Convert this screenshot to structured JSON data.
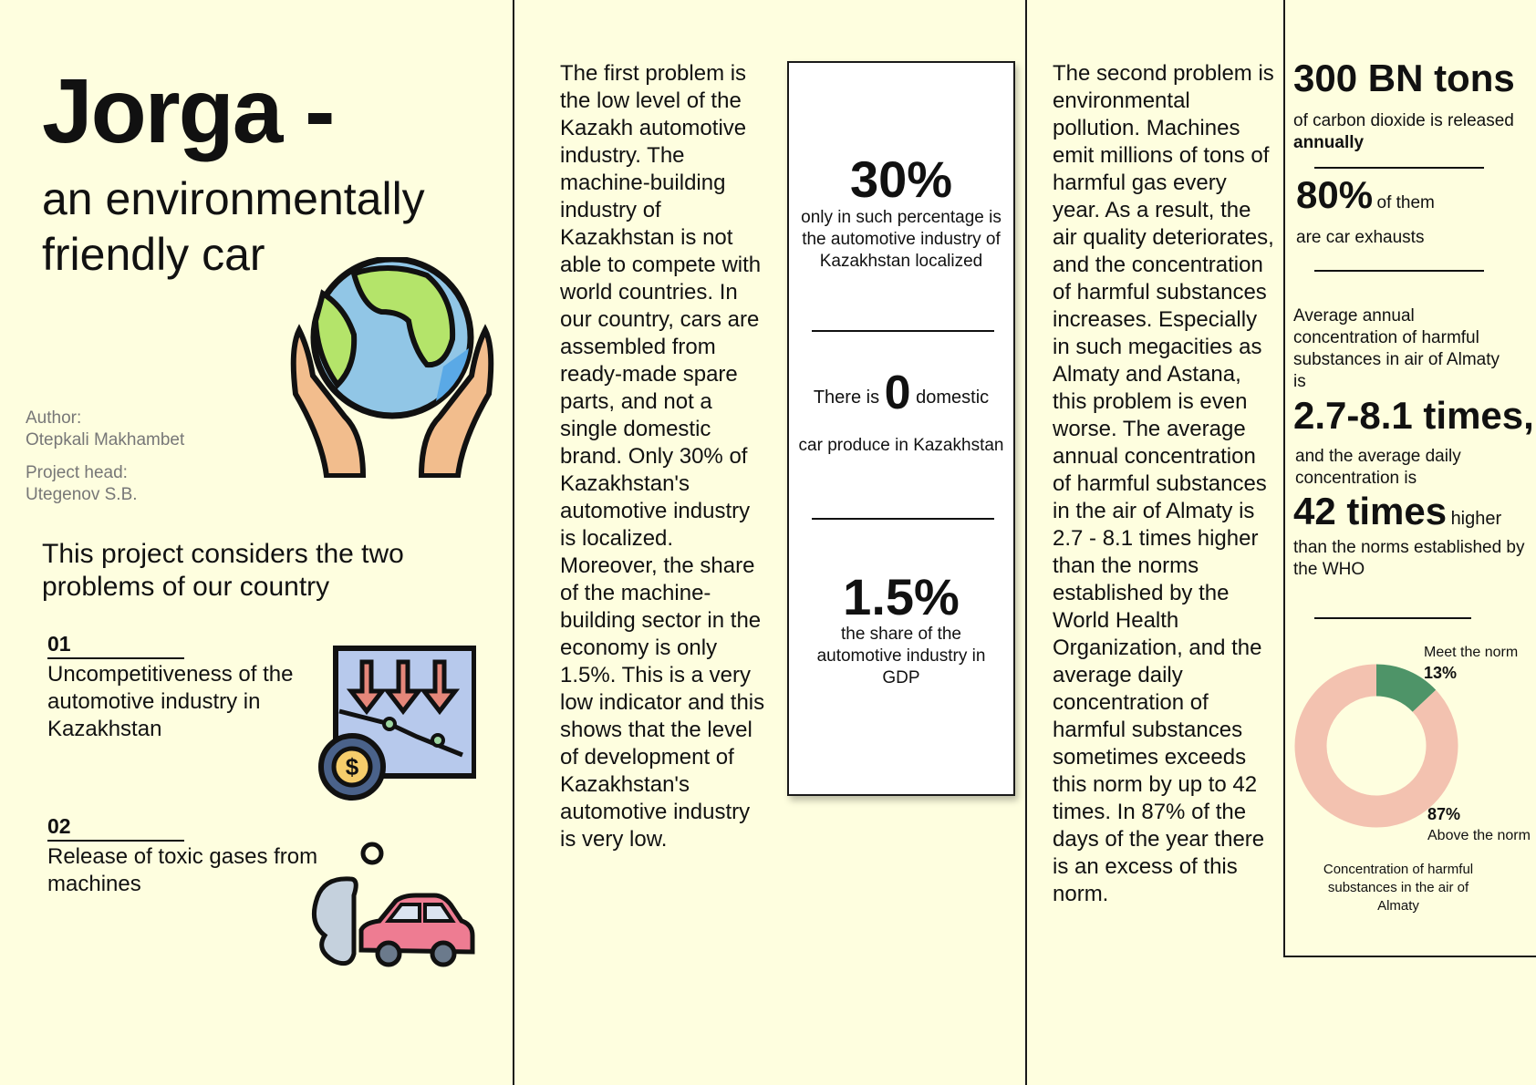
{
  "header": {
    "title": "Jorga -",
    "subtitle": "an environmentally friendly car"
  },
  "credits": {
    "author_label": "Author:",
    "author_name": "Otepkali Makhambet",
    "head_label": "Project head:",
    "head_name": "Utegenov S.B."
  },
  "intro": "This project considers the two problems of our country",
  "problems": [
    {
      "number": "01",
      "text": "Uncompetitiveness of the automotive industry in Kazakhstan",
      "icon": "declining-chart-icon"
    },
    {
      "number": "02",
      "text": "Release of toxic gases from machines",
      "icon": "car-exhaust-icon"
    }
  ],
  "globe_icon": "globe-in-hands-icon",
  "column2": {
    "text": "The first problem is the low level of the Kazakh automotive industry. The machine-building industry of Kazakhstan is not able to compete with world countries. In our country, cars are assembled from ready-made spare parts, and not a single domestic brand. Only 30% of Kazakhstan's automotive industry is localized. Moreover, the share of the machine-building sector in the economy is only 1.5%. This is a very low indicator and this shows that the level of development of Kazakhstan's automotive industry is very low."
  },
  "stats_box": {
    "stat1_value": "30%",
    "stat1_caption": "only in such percentage is the automotive industry of Kazakhstan localized",
    "stat2_prefix": "There is",
    "stat2_value": "0",
    "stat2_suffix": "domestic",
    "stat2_caption": "car produce in Kazakhstan",
    "stat3_value": "1.5%",
    "stat3_caption": "the share of the automotive industry in GDP"
  },
  "column3": {
    "text": "The second problem is environmental pollution. Machines emit millions of tons of harmful gas every year. As a result, the air quality deteriorates, and the concentration of harmful substances increases. Especially in such megacities as Almaty and Astana, this problem is even worse. The average annual concentration of harmful substances in the air of Almaty is 2.7 - 8.1 times higher than the norms established by the World Health Organization, and the average daily concentration of harmful substances sometimes exceeds this norm by up to 42 times. In 87% of the days of the year there is an excess of this norm."
  },
  "column4": {
    "co2_value": "300 BN tons",
    "co2_text": "of carbon dioxide is released",
    "co2_bold": "annually",
    "cars_value": "80%",
    "cars_suffix": "of them",
    "cars_text": "are car exhausts",
    "annual_text": "Average annual concentration of harmful substances in air of Almaty is",
    "annual_value": "2.7-8.1 times,",
    "daily_text": "and the average daily concentration is",
    "daily_value": "42 times",
    "daily_suffix": "higher",
    "daily_tail": "than the norms established by the WHO"
  },
  "chart_data": {
    "type": "pie",
    "title": "Concentration of harmful substances in the air of Almaty",
    "labels": [
      "Meet the norm",
      "Above the norm"
    ],
    "values": [
      13,
      87
    ],
    "value_labels": [
      "13%",
      "87%"
    ],
    "colors": [
      "#4e9468",
      "#f3c2b0"
    ],
    "donut": true
  }
}
